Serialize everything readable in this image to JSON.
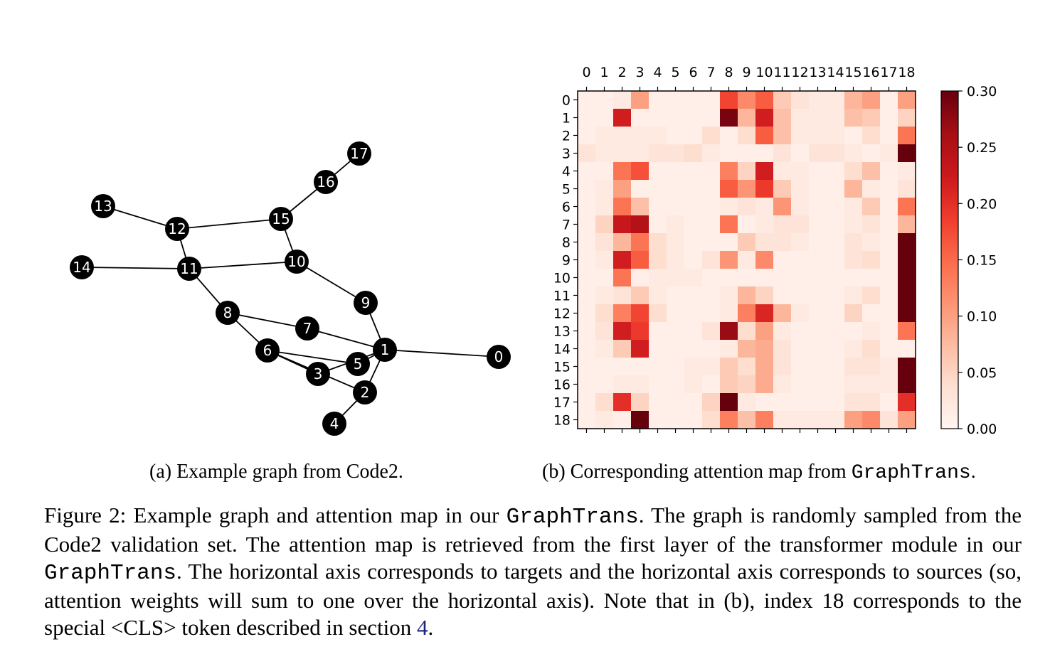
{
  "figure": {
    "label": "Figure 2:",
    "caption_parts": [
      "Example graph and attention map in our ",
      "GraphTrans",
      ". The graph is randomly sampled from the Code2 validation set. The attention map is retrieved from the first layer of the transformer module in our ",
      "GraphTrans",
      ". The horizontal axis corresponds to targets and the horizontal axis corresponds to sources (so, attention weights will sum to one over the horizontal axis). Note that in (b), index 18 corresponds to the special <CLS> token described in section ",
      "4",
      "."
    ]
  },
  "subfigure_a": {
    "caption": "(a) Example graph from Code2."
  },
  "subfigure_b": {
    "caption_prefix": "(b) Corresponding attention map from ",
    "caption_code": "GraphTrans",
    "caption_suffix": "."
  },
  "graph": {
    "node_color": "#000000",
    "node_label_color": "#ffffff",
    "edge_color": "#000000",
    "nodes": [
      {
        "id": "0"
      },
      {
        "id": "1"
      },
      {
        "id": "2"
      },
      {
        "id": "3"
      },
      {
        "id": "4"
      },
      {
        "id": "5"
      },
      {
        "id": "6"
      },
      {
        "id": "7"
      },
      {
        "id": "8"
      },
      {
        "id": "9"
      },
      {
        "id": "10"
      },
      {
        "id": "11"
      },
      {
        "id": "12"
      },
      {
        "id": "13"
      },
      {
        "id": "14"
      },
      {
        "id": "15"
      },
      {
        "id": "16"
      },
      {
        "id": "17"
      }
    ],
    "edges": [
      [
        "1",
        "0"
      ],
      [
        "1",
        "9"
      ],
      [
        "1",
        "7"
      ],
      [
        "1",
        "5"
      ],
      [
        "1",
        "2"
      ],
      [
        "1",
        "3"
      ],
      [
        "2",
        "4"
      ],
      [
        "2",
        "6"
      ],
      [
        "5",
        "6"
      ],
      [
        "3",
        "6"
      ],
      [
        "6",
        "8"
      ],
      [
        "7",
        "8"
      ],
      [
        "8",
        "11"
      ],
      [
        "11",
        "14"
      ],
      [
        "11",
        "12"
      ],
      [
        "11",
        "10"
      ],
      [
        "12",
        "13"
      ],
      [
        "12",
        "15"
      ],
      [
        "15",
        "10"
      ],
      [
        "15",
        "16"
      ],
      [
        "16",
        "17"
      ],
      [
        "10",
        "9"
      ]
    ]
  },
  "chart_data": {
    "type": "heatmap",
    "title": "",
    "x_tick_labels": [
      "0",
      "1",
      "2",
      "3",
      "4",
      "5",
      "6",
      "7",
      "8",
      "9",
      "10",
      "11",
      "12",
      "13",
      "14",
      "15",
      "16",
      "17",
      "18"
    ],
    "y_tick_labels": [
      "0",
      "1",
      "2",
      "3",
      "4",
      "5",
      "6",
      "7",
      "8",
      "9",
      "10",
      "11",
      "12",
      "13",
      "14",
      "15",
      "16",
      "17",
      "18"
    ],
    "colormap": "Reds",
    "vmin": 0.0,
    "vmax": 0.3,
    "colorbar_ticks": [
      {
        "value": 0.0,
        "label": "0.00"
      },
      {
        "value": 0.05,
        "label": "0.05"
      },
      {
        "value": 0.1,
        "label": "0.10"
      },
      {
        "value": 0.15,
        "label": "0.15"
      },
      {
        "value": 0.2,
        "label": "0.20"
      },
      {
        "value": 0.25,
        "label": "0.25"
      },
      {
        "value": 0.3,
        "label": "0.30"
      }
    ],
    "values": [
      [
        0.01,
        0.01,
        0.02,
        0.1,
        0.01,
        0.01,
        0.01,
        0.01,
        0.18,
        0.12,
        0.16,
        0.06,
        0.03,
        0.02,
        0.02,
        0.08,
        0.1,
        0.01,
        0.1
      ],
      [
        0.01,
        0.01,
        0.22,
        0.01,
        0.01,
        0.01,
        0.01,
        0.01,
        0.29,
        0.08,
        0.22,
        0.07,
        0.02,
        0.02,
        0.02,
        0.07,
        0.06,
        0.01,
        0.05
      ],
      [
        0.01,
        0.02,
        0.02,
        0.02,
        0.02,
        0.01,
        0.01,
        0.04,
        0.01,
        0.04,
        0.16,
        0.07,
        0.02,
        0.02,
        0.02,
        0.01,
        0.04,
        0.01,
        0.14
      ],
      [
        0.03,
        0.02,
        0.02,
        0.02,
        0.03,
        0.03,
        0.04,
        0.02,
        0.01,
        0.01,
        0.01,
        0.03,
        0.01,
        0.03,
        0.03,
        0.02,
        0.01,
        0.02,
        0.3
      ],
      [
        0.01,
        0.01,
        0.14,
        0.17,
        0.01,
        0.01,
        0.01,
        0.01,
        0.13,
        0.05,
        0.22,
        0.02,
        0.02,
        0.01,
        0.01,
        0.04,
        0.07,
        0.01,
        0.02
      ],
      [
        0.01,
        0.02,
        0.1,
        0.01,
        0.01,
        0.01,
        0.01,
        0.01,
        0.16,
        0.11,
        0.19,
        0.06,
        0.02,
        0.01,
        0.01,
        0.08,
        0.02,
        0.01,
        0.03
      ],
      [
        0.01,
        0.02,
        0.14,
        0.07,
        0.01,
        0.01,
        0.01,
        0.01,
        0.02,
        0.03,
        0.02,
        0.11,
        0.02,
        0.01,
        0.01,
        0.02,
        0.06,
        0.01,
        0.14
      ],
      [
        0.01,
        0.05,
        0.23,
        0.25,
        0.01,
        0.02,
        0.01,
        0.01,
        0.14,
        0.01,
        0.02,
        0.03,
        0.03,
        0.01,
        0.01,
        0.02,
        0.03,
        0.01,
        0.08
      ],
      [
        0.01,
        0.03,
        0.08,
        0.14,
        0.04,
        0.02,
        0.01,
        0.01,
        0.01,
        0.06,
        0.03,
        0.03,
        0.02,
        0.01,
        0.01,
        0.03,
        0.02,
        0.01,
        0.3
      ],
      [
        0.01,
        0.02,
        0.22,
        0.16,
        0.04,
        0.02,
        0.01,
        0.03,
        0.11,
        0.02,
        0.12,
        0.01,
        0.01,
        0.01,
        0.01,
        0.03,
        0.04,
        0.01,
        0.3
      ],
      [
        0.01,
        0.01,
        0.14,
        0.01,
        0.02,
        0.02,
        0.02,
        0.01,
        0.01,
        0.01,
        0.01,
        0.01,
        0.01,
        0.01,
        0.01,
        0.01,
        0.01,
        0.01,
        0.3
      ],
      [
        0.01,
        0.02,
        0.03,
        0.06,
        0.02,
        0.01,
        0.01,
        0.01,
        0.02,
        0.08,
        0.05,
        0.01,
        0.01,
        0.01,
        0.01,
        0.02,
        0.04,
        0.01,
        0.3
      ],
      [
        0.01,
        0.04,
        0.13,
        0.18,
        0.04,
        0.01,
        0.01,
        0.01,
        0.02,
        0.13,
        0.21,
        0.08,
        0.02,
        0.01,
        0.01,
        0.05,
        0.01,
        0.01,
        0.3
      ],
      [
        0.01,
        0.03,
        0.22,
        0.19,
        0.01,
        0.01,
        0.01,
        0.03,
        0.27,
        0.04,
        0.1,
        0.02,
        0.01,
        0.01,
        0.01,
        0.01,
        0.02,
        0.01,
        0.14
      ],
      [
        0.01,
        0.02,
        0.06,
        0.22,
        0.01,
        0.01,
        0.01,
        0.01,
        0.02,
        0.08,
        0.09,
        0.03,
        0.01,
        0.01,
        0.01,
        0.02,
        0.04,
        0.01,
        0.01
      ],
      [
        0.01,
        0.01,
        0.01,
        0.01,
        0.01,
        0.01,
        0.02,
        0.02,
        0.06,
        0.04,
        0.09,
        0.03,
        0.01,
        0.01,
        0.01,
        0.03,
        0.03,
        0.02,
        0.3
      ],
      [
        0.01,
        0.01,
        0.02,
        0.02,
        0.01,
        0.01,
        0.02,
        0.01,
        0.06,
        0.05,
        0.09,
        0.02,
        0.01,
        0.01,
        0.01,
        0.02,
        0.02,
        0.02,
        0.3
      ],
      [
        0.01,
        0.04,
        0.2,
        0.05,
        0.01,
        0.01,
        0.01,
        0.05,
        0.3,
        0.02,
        0.01,
        0.01,
        0.01,
        0.01,
        0.01,
        0.03,
        0.03,
        0.01,
        0.2
      ],
      [
        0.01,
        0.02,
        0.01,
        0.3,
        0.01,
        0.01,
        0.01,
        0.04,
        0.13,
        0.07,
        0.13,
        0.02,
        0.02,
        0.02,
        0.02,
        0.1,
        0.12,
        0.03,
        0.1
      ]
    ]
  }
}
